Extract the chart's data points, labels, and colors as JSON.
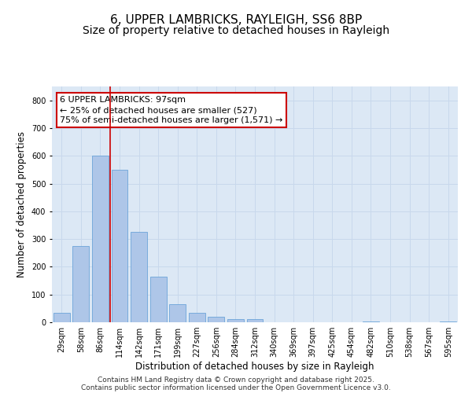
{
  "title_line1": "6, UPPER LAMBRICKS, RAYLEIGH, SS6 8BP",
  "title_line2": "Size of property relative to detached houses in Rayleigh",
  "xlabel": "Distribution of detached houses by size in Rayleigh",
  "ylabel": "Number of detached properties",
  "categories": [
    "29sqm",
    "58sqm",
    "86sqm",
    "114sqm",
    "142sqm",
    "171sqm",
    "199sqm",
    "227sqm",
    "256sqm",
    "284sqm",
    "312sqm",
    "340sqm",
    "369sqm",
    "397sqm",
    "425sqm",
    "454sqm",
    "482sqm",
    "510sqm",
    "538sqm",
    "567sqm",
    "595sqm"
  ],
  "values": [
    35,
    275,
    600,
    550,
    325,
    165,
    65,
    35,
    20,
    10,
    12,
    0,
    0,
    0,
    0,
    0,
    3,
    0,
    0,
    0,
    2
  ],
  "bar_color": "#aec6e8",
  "bar_edge_color": "#5b9bd5",
  "grid_color": "#c8d8ec",
  "background_color": "#dce8f5",
  "vline_color": "#cc0000",
  "vline_position": 2.5,
  "annotation_text": "6 UPPER LAMBRICKS: 97sqm\n← 25% of detached houses are smaller (527)\n75% of semi-detached houses are larger (1,571) →",
  "annotation_box_edgecolor": "#cc0000",
  "ylim": [
    0,
    850
  ],
  "yticks": [
    0,
    100,
    200,
    300,
    400,
    500,
    600,
    700,
    800
  ],
  "footer_line1": "Contains HM Land Registry data © Crown copyright and database right 2025.",
  "footer_line2": "Contains public sector information licensed under the Open Government Licence v3.0.",
  "title_fontsize": 11,
  "subtitle_fontsize": 10,
  "axis_label_fontsize": 8.5,
  "tick_fontsize": 7,
  "footer_fontsize": 6.5,
  "annotation_fontsize": 8
}
